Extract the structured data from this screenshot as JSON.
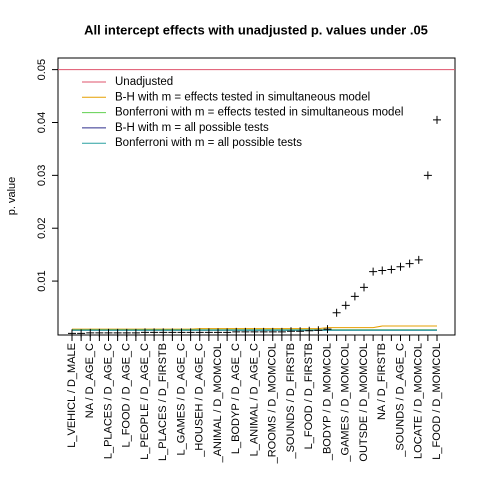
{
  "chart_data": {
    "type": "scatter",
    "title": "All intercept effects with unadjusted p. values under .05",
    "y_label": "p. value",
    "ylim": [
      -0.0002,
      0.0522
    ],
    "yticks": [
      0.01,
      0.02,
      0.03,
      0.04,
      0.05
    ],
    "categories": [
      "L_VEHICL / D_MALE",
      null,
      "NA / D_AGE_C",
      null,
      "L_PLACES / D_AGE_C",
      null,
      "L_FOOD / D_AGE_C",
      null,
      "L_PEOPLE / D_AGE_C",
      null,
      "L_PLACES / D_FIRSTB",
      null,
      "L_GAMES / D_AGE_C",
      null,
      "_HOUSEH / D_AGE_C",
      null,
      "_ANIMAL / D_MOMCOL",
      null,
      "L_BODYP / D_AGE_C",
      null,
      "L_ANIMAL / D_AGE_C",
      null,
      "_ROOMS / D_MOMCOL",
      null,
      "_SOUNDS / D_FIRSTB",
      null,
      "L_FOOD / D_FIRSTB",
      null,
      "_BODYP / D_MOMCOL",
      null,
      "_GAMES / D_MOMCOL",
      null,
      "OUTSDE / D_MOMCOL",
      null,
      "NA / D_FIRSTB",
      null,
      "_SOUNDS / D_AGE_C",
      null,
      "LOCATE / D_MOMCOL",
      null,
      "L_FOOD / D_MOMCOL"
    ],
    "points": {
      "color": "#000000",
      "values": [
        0.0001,
        0.0001,
        0.0002,
        0.0002,
        0.0002,
        0.0002,
        0.0002,
        0.0002,
        0.0003,
        0.0003,
        0.0003,
        0.0003,
        0.0003,
        0.0003,
        0.0003,
        0.0003,
        0.0003,
        0.0003,
        0.0004,
        0.0004,
        0.0004,
        0.0004,
        0.0004,
        0.0004,
        0.0005,
        0.0005,
        0.0006,
        0.0007,
        0.0009,
        0.004,
        0.0054,
        0.0071,
        0.0088,
        0.0118,
        0.012,
        0.0122,
        0.0127,
        0.0133,
        0.014,
        0.03,
        0.0405
      ]
    },
    "series": [
      {
        "name": "Unadjusted",
        "color": "#df536b",
        "values": [
          0.05,
          0.05,
          0.05,
          0.05,
          0.05,
          0.05,
          0.05,
          0.05,
          0.05,
          0.05,
          0.05,
          0.05,
          0.05,
          0.05,
          0.05,
          0.05,
          0.05,
          0.05,
          0.05,
          0.05,
          0.05,
          0.05,
          0.05,
          0.05,
          0.05,
          0.05,
          0.05,
          0.05,
          0.05,
          0.05,
          0.05,
          0.05,
          0.05,
          0.05,
          0.05,
          0.05,
          0.05,
          0.05,
          0.05,
          0.05,
          0.05
        ]
      },
      {
        "name": "B-H with m = effects tested in simultaneous model",
        "color": "#e69f00",
        "values": [
          0.0009,
          0.0009,
          0.0009,
          0.0009,
          0.0009,
          0.0009,
          0.0009,
          0.0009,
          0.0009,
          0.0009,
          0.0009,
          0.0009,
          0.0009,
          0.0009,
          0.001,
          0.001,
          0.001,
          0.001,
          0.001,
          0.001,
          0.001,
          0.001,
          0.001,
          0.001,
          0.001,
          0.001,
          0.001,
          0.001,
          0.0012,
          0.0012,
          0.0012,
          0.0012,
          0.0012,
          0.0012,
          0.0015,
          0.0015,
          0.0015,
          0.0015,
          0.0015,
          0.0015,
          0.0015
        ]
      },
      {
        "name": "Bonferroni with m = effects tested in simultaneous model",
        "color": "#61d04f",
        "values": [
          0.0008,
          0.0008,
          0.0008,
          0.0008,
          0.0008,
          0.0008,
          0.0008,
          0.0008,
          0.0008,
          0.0008,
          0.0008,
          0.0008,
          0.0008,
          0.0008,
          0.0008,
          0.0008,
          0.0008,
          0.0008,
          0.0008,
          0.0008,
          0.0008,
          0.0008,
          0.0008,
          0.0008,
          0.0008,
          0.0008,
          0.0008,
          0.0008,
          0.0008,
          0.0008,
          0.0008,
          0.0008,
          0.0008,
          0.0008,
          0.0008,
          0.0008,
          0.0008,
          0.0008,
          0.0008,
          0.0008,
          0.0008
        ]
      },
      {
        "name": "B-H with m = all possible tests",
        "color": "#2e2e8c",
        "values": [
          0.0007,
          0.0007,
          0.0007,
          0.0007,
          0.0007,
          0.0007,
          0.0007,
          0.0007,
          0.0007,
          0.0007,
          0.0007,
          0.0007,
          0.0007,
          0.0007,
          0.0007,
          0.0007,
          0.0007,
          0.0007,
          0.0007,
          0.0007,
          0.0007,
          0.0007,
          0.0007,
          0.0007,
          0.0007,
          0.0007,
          0.0007,
          0.0007,
          0.0007,
          0.0007,
          0.0007,
          0.0007,
          0.0007,
          0.0007,
          0.0007,
          0.0007,
          0.0007,
          0.0007,
          0.0007,
          0.0007,
          0.0007
        ]
      },
      {
        "name": "Bonferroni with m = all possible tests",
        "color": "#28a0a0",
        "values": [
          0.0007,
          0.0007,
          0.0007,
          0.0007,
          0.0007,
          0.0007,
          0.0007,
          0.0007,
          0.0007,
          0.0007,
          0.0007,
          0.0007,
          0.0007,
          0.0007,
          0.0007,
          0.0007,
          0.0007,
          0.0007,
          0.0007,
          0.0007,
          0.0007,
          0.0007,
          0.0007,
          0.0007,
          0.0007,
          0.0007,
          0.0007,
          0.0007,
          0.0007,
          0.0007,
          0.0007,
          0.0007,
          0.0007,
          0.0007,
          0.0007,
          0.0007,
          0.0007,
          0.0007,
          0.0007,
          0.0007,
          0.0007
        ]
      }
    ]
  }
}
